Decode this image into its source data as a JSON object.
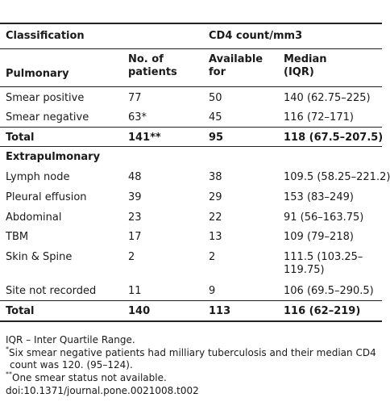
{
  "header": {
    "classification": "Classification",
    "cd4": "CD4 count/mm3",
    "pulmonary": "Pulmonary",
    "no_of_patients_1": "No. of",
    "no_of_patients_2": "patients",
    "available_1": "Available",
    "available_2": "for",
    "median_1": "Median",
    "median_2": "(IQR)"
  },
  "pulmonary_rows": [
    {
      "name": "Smear positive",
      "patients": "77",
      "available": "50",
      "median": "140 (62.75–225)"
    },
    {
      "name": "Smear negative",
      "patients": "63*",
      "available": "45",
      "median": "116 (72–171)"
    }
  ],
  "pulmonary_total": {
    "name": "Total",
    "patients": "141**",
    "available": "95",
    "median": "118 (67.5–207.5)"
  },
  "extrapulmonary_label": "Extrapulmonary",
  "extrapulmonary_rows": [
    {
      "name": "Lymph node",
      "patients": "48",
      "available": "38",
      "median": "109.5 (58.25–221.2)"
    },
    {
      "name": "Pleural effusion",
      "patients": "39",
      "available": "29",
      "median": "153 (83–249)"
    },
    {
      "name": "Abdominal",
      "patients": "23",
      "available": "22",
      "median": "91 (56–163.75)"
    },
    {
      "name": "TBM",
      "patients": "17",
      "available": "13",
      "median": "109 (79–218)"
    },
    {
      "name": "Skin & Spine",
      "patients": "2",
      "available": "2",
      "median_1": "111.5 (103.25–",
      "median_2": "119.75)"
    },
    {
      "name": "Site not recorded",
      "patients": "11",
      "available": "9",
      "median": "106 (69.5–290.5)"
    }
  ],
  "extrapulmonary_total": {
    "name": "Total",
    "patients": "140",
    "available": "113",
    "median": "116 (62–219)"
  },
  "footnotes": {
    "iqr": "IQR – Inter Quartile Range.",
    "star_mark": "*",
    "star_1": "Six smear negative patients had milliary tuberculosis and their median CD4",
    "star_2": "count was 120. (95–124).",
    "dstar_mark": "**",
    "dstar": "One smear status not available.",
    "doi": "doi:10.1371/journal.pone.0021008.t002"
  }
}
